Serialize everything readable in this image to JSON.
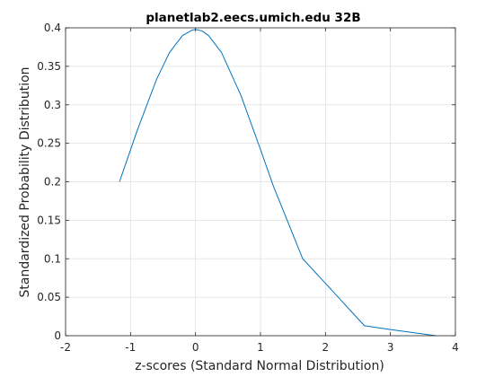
{
  "chart_data": {
    "type": "line",
    "title": "planetlab2.eecs.umich.edu 32B",
    "xlabel": "z-scores (Standard Normal Distribution)",
    "ylabel": "Standardized Probability Distribution",
    "xlim": [
      -2,
      4
    ],
    "ylim": [
      0,
      0.4
    ],
    "xticks": [
      -2,
      -1,
      0,
      1,
      2,
      3,
      4
    ],
    "xtick_labels": [
      "-2",
      "-1",
      "0",
      "1",
      "2",
      "3",
      "4"
    ],
    "yticks": [
      0,
      0.05,
      0.1,
      0.15,
      0.2,
      0.25,
      0.3,
      0.35,
      0.4
    ],
    "ytick_labels": [
      "0",
      "0.05",
      "0.1",
      "0.15",
      "0.2",
      "0.25",
      "0.3",
      "0.35",
      "0.4"
    ],
    "grid": true,
    "series": [
      {
        "color": "#0072bd",
        "x": [
          -1.17,
          -0.9,
          -0.6,
          -0.4,
          -0.2,
          -0.05,
          0.0,
          0.1,
          0.2,
          0.4,
          0.7,
          1.0,
          1.2,
          1.65,
          2.0,
          2.6,
          3.0,
          3.7
        ],
        "y": [
          0.2,
          0.266,
          0.333,
          0.368,
          0.39,
          0.397,
          0.398,
          0.396,
          0.39,
          0.368,
          0.312,
          0.242,
          0.194,
          0.1,
          0.068,
          0.013,
          0.008,
          0.0
        ]
      }
    ]
  }
}
